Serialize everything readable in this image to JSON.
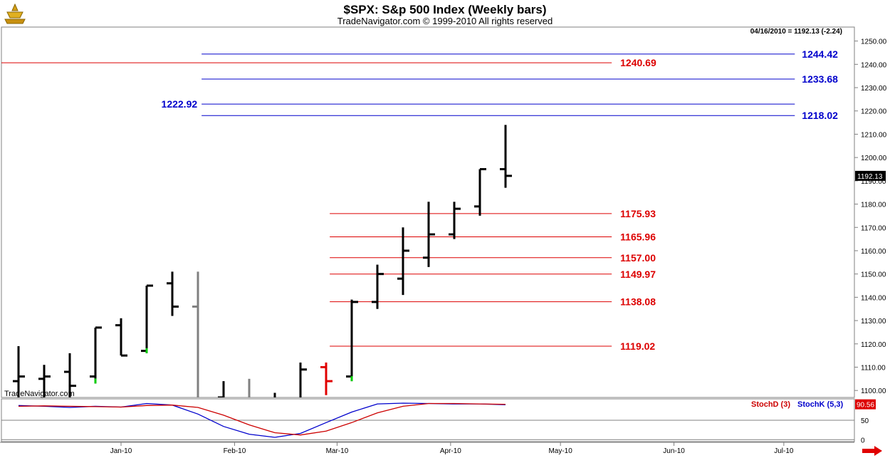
{
  "header": {
    "title": "$SPX:  S&p 500 Index  (Weekly bars)",
    "subtitle": "TradeNavigator.com © 1999-2010 All rights reserved",
    "readout": "04/16/2010 = 1192.13 (-2.24)",
    "watermark": "TradeNavigator.com"
  },
  "colors": {
    "blue_level": "#0000cc",
    "red_level": "#dd0000",
    "bar": "#000000",
    "gray_bar": "#808080",
    "red_bar": "#e00000",
    "green_tick": "#00cc00",
    "stochK": "#0000cc",
    "stochD": "#cc0000"
  },
  "chart_data": [
    {
      "type": "ohlc",
      "title": "$SPX:  S&p 500 Index  (Weekly bars)",
      "ylim": [
        1097,
        1256
      ],
      "y_ticks": [
        1100,
        1110,
        1120,
        1130,
        1140,
        1150,
        1160,
        1170,
        1180,
        1190,
        1200,
        1210,
        1220,
        1230,
        1240,
        1250
      ],
      "y_tick_labels": [
        "1100.00",
        "1110.00",
        "1120.00",
        "1130.00",
        "1140.00",
        "1150.00",
        "1160.00",
        "1170.00",
        "1180.00",
        "1190.00",
        "1200.00",
        "1210.00",
        "1220.00",
        "1230.00",
        "1240.00",
        "1250.00"
      ],
      "x_tick_labels": [
        "Jan-10",
        "Feb-10",
        "Mar-10",
        "Apr-10",
        "May-10",
        "Jun-10",
        "Jul-10"
      ],
      "x_tick_dates": [
        "2010-01-01",
        "2010-02-01",
        "2010-03-01",
        "2010-04-01",
        "2010-05-01",
        "2010-06-01",
        "2010-07-01"
      ],
      "last_price_label": "1192.13",
      "bars": [
        {
          "date": "2009-12-04",
          "open": 1104,
          "high": 1119,
          "low": 1095,
          "close": 1106,
          "color": "bar"
        },
        {
          "date": "2009-12-11",
          "open": 1105,
          "high": 1111,
          "low": 1095,
          "close": 1106,
          "color": "bar"
        },
        {
          "date": "2009-12-18",
          "open": 1108,
          "high": 1116,
          "low": 1096,
          "close": 1102,
          "color": "bar"
        },
        {
          "date": "2009-12-25",
          "open": 1106,
          "high": 1127,
          "low": 1103,
          "close": 1127,
          "color": "bar",
          "signal": "low"
        },
        {
          "date": "2010-01-01",
          "open": 1128,
          "high": 1131,
          "low": 1115,
          "close": 1115,
          "color": "bar"
        },
        {
          "date": "2010-01-08",
          "open": 1117,
          "high": 1145,
          "low": 1116,
          "close": 1145,
          "color": "bar",
          "signal": "low"
        },
        {
          "date": "2010-01-15",
          "open": 1146,
          "high": 1151,
          "low": 1132,
          "close": 1136,
          "color": "bar"
        },
        {
          "date": "2010-01-22",
          "open": 1136,
          "high": 1151,
          "low": 1095,
          "close": 1096,
          "color": "gray_bar"
        },
        {
          "date": "2010-01-29",
          "open": 1097,
          "high": 1104,
          "low": 1090,
          "close": 1092,
          "color": "bar"
        },
        {
          "date": "2010-02-05",
          "open": 1092,
          "high": 1105,
          "low": 1086,
          "close": 1094,
          "color": "gray_bar"
        },
        {
          "date": "2010-02-12",
          "open": 1095,
          "high": 1099,
          "low": 1070,
          "close": 1082,
          "color": "bar"
        },
        {
          "date": "2010-02-19",
          "open": 1085,
          "high": 1112,
          "low": 1084,
          "close": 1109,
          "color": "bar"
        },
        {
          "date": "2010-02-26",
          "open": 1110,
          "high": 1112,
          "low": 1098,
          "close": 1104,
          "color": "red_bar"
        },
        {
          "date": "2010-03-05",
          "open": 1106,
          "high": 1139,
          "low": 1104,
          "close": 1138,
          "color": "bar",
          "signal": "low"
        },
        {
          "date": "2010-03-12",
          "open": 1138,
          "high": 1154,
          "low": 1135,
          "close": 1150,
          "color": "bar"
        },
        {
          "date": "2010-03-19",
          "open": 1148,
          "high": 1170,
          "low": 1141,
          "close": 1160,
          "color": "bar"
        },
        {
          "date": "2010-03-26",
          "open": 1157,
          "high": 1181,
          "low": 1153,
          "close": 1167,
          "color": "bar"
        },
        {
          "date": "2010-04-02",
          "open": 1167,
          "high": 1181,
          "low": 1165,
          "close": 1178,
          "color": "bar"
        },
        {
          "date": "2010-04-09",
          "open": 1179,
          "high": 1195,
          "low": 1175,
          "close": 1195,
          "color": "bar"
        },
        {
          "date": "2010-04-16",
          "open": 1195,
          "high": 1214,
          "low": 1187,
          "close": 1192.13,
          "color": "bar"
        }
      ],
      "levels_blue": [
        {
          "value": 1244.42,
          "label": "1244.42",
          "from": "2010-01-23",
          "to": "2010-07-04",
          "label_side": "right"
        },
        {
          "value": 1233.68,
          "label": "1233.68",
          "from": "2010-01-23",
          "to": "2010-07-04",
          "label_side": "right"
        },
        {
          "value": 1222.92,
          "label": "1222.92",
          "from": "2010-01-23",
          "to": "2010-07-04",
          "label_side": "left"
        },
        {
          "value": 1218.02,
          "label": "1218.02",
          "from": "2010-01-23",
          "to": "2010-07-04",
          "label_side": "right"
        }
      ],
      "levels_red": [
        {
          "value": 1240.69,
          "label": "1240.69",
          "from": "2009-11-24",
          "to": "2010-05-15"
        },
        {
          "value": 1175.93,
          "label": "1175.93",
          "from": "2010-02-27",
          "to": "2010-05-15"
        },
        {
          "value": 1165.96,
          "label": "1165.96",
          "from": "2010-02-27",
          "to": "2010-05-15"
        },
        {
          "value": 1157.0,
          "label": "1157.00",
          "from": "2010-02-27",
          "to": "2010-05-15"
        },
        {
          "value": 1149.97,
          "label": "1149.97",
          "from": "2010-02-27",
          "to": "2010-05-15"
        },
        {
          "value": 1138.08,
          "label": "1138.08",
          "from": "2010-02-27",
          "to": "2010-05-15"
        },
        {
          "value": 1119.02,
          "label": "1119.02",
          "from": "2010-02-27",
          "to": "2010-05-15"
        }
      ]
    },
    {
      "type": "line",
      "title": "",
      "ylim": [
        -5,
        105
      ],
      "y_ticks": [
        0,
        50
      ],
      "y_tick_labels": [
        "0",
        "50"
      ],
      "last_value_label": "90.56",
      "legend": [
        "StochD (3)",
        "StochK (5,3)"
      ],
      "series": [
        {
          "name": "StochK (5,3)",
          "color": "stochK",
          "x": [
            "2009-12-04",
            "2009-12-11",
            "2009-12-18",
            "2009-12-25",
            "2010-01-01",
            "2010-01-08",
            "2010-01-15",
            "2010-01-22",
            "2010-01-29",
            "2010-02-05",
            "2010-02-12",
            "2010-02-19",
            "2010-02-26",
            "2010-03-05",
            "2010-03-12",
            "2010-03-19",
            "2010-03-26",
            "2010-04-02",
            "2010-04-09",
            "2010-04-16"
          ],
          "values": [
            88,
            86,
            83,
            86,
            84,
            93,
            89,
            66,
            34,
            14,
            6,
            16,
            44,
            71,
            92,
            94,
            93,
            92,
            92,
            90
          ]
        },
        {
          "name": "StochD (3)",
          "color": "stochD",
          "x": [
            "2009-12-04",
            "2009-12-11",
            "2009-12-18",
            "2009-12-25",
            "2010-01-01",
            "2010-01-08",
            "2010-01-15",
            "2010-01-22",
            "2010-01-29",
            "2010-02-05",
            "2010-02-12",
            "2010-02-19",
            "2010-02-26",
            "2010-03-05",
            "2010-03-12",
            "2010-03-19",
            "2010-03-26",
            "2010-04-02",
            "2010-04-09",
            "2010-04-16"
          ],
          "values": [
            86,
            87,
            86,
            85,
            84,
            88,
            89,
            83,
            63,
            38,
            18,
            12,
            22,
            44,
            69,
            86,
            93,
            93,
            92,
            91
          ]
        }
      ]
    }
  ]
}
